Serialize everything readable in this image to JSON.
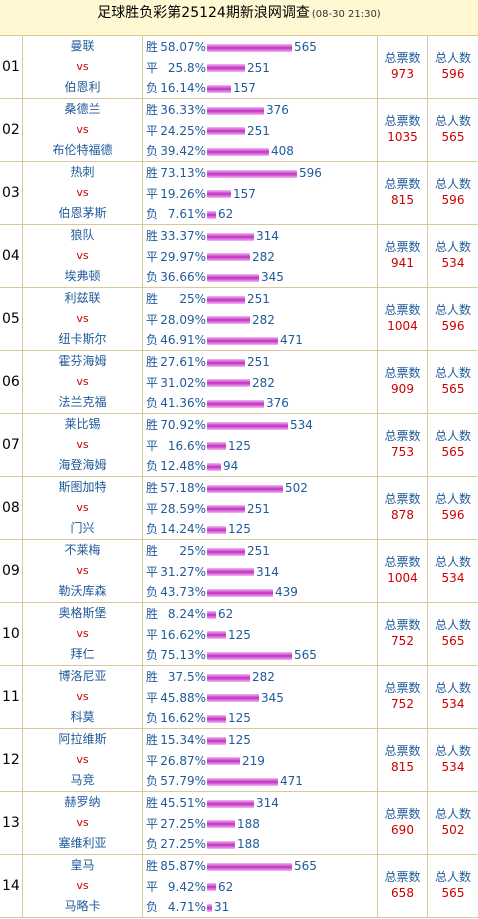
{
  "header": {
    "title": "足球胜负彩第25124期新浪网调查",
    "time": "(08-30 21:30)"
  },
  "labels": {
    "win": "胜",
    "draw": "平",
    "loss": "负",
    "vs": "vs",
    "total_votes": "总票数",
    "total_people": "总人数"
  },
  "scale_max": 596,
  "matches": [
    {
      "num": "01",
      "home": "曼联",
      "away": "伯恩利",
      "win": {
        "pct": "58.07%",
        "count": 565
      },
      "draw": {
        "pct": "25.8%",
        "count": 251
      },
      "loss": {
        "pct": "16.14%",
        "count": 157
      },
      "votes": "973",
      "people": "596"
    },
    {
      "num": "02",
      "home": "桑德兰",
      "away": "布伦特福德",
      "win": {
        "pct": "36.33%",
        "count": 376
      },
      "draw": {
        "pct": "24.25%",
        "count": 251
      },
      "loss": {
        "pct": "39.42%",
        "count": 408
      },
      "votes": "1035",
      "people": "565"
    },
    {
      "num": "03",
      "home": "热刺",
      "away": "伯恩茅斯",
      "win": {
        "pct": "73.13%",
        "count": 596
      },
      "draw": {
        "pct": "19.26%",
        "count": 157
      },
      "loss": {
        "pct": "7.61%",
        "count": 62
      },
      "votes": "815",
      "people": "596"
    },
    {
      "num": "04",
      "home": "狼队",
      "away": "埃弗顿",
      "win": {
        "pct": "33.37%",
        "count": 314
      },
      "draw": {
        "pct": "29.97%",
        "count": 282
      },
      "loss": {
        "pct": "36.66%",
        "count": 345
      },
      "votes": "941",
      "people": "534"
    },
    {
      "num": "05",
      "home": "利兹联",
      "away": "纽卡斯尔",
      "win": {
        "pct": "25%",
        "count": 251
      },
      "draw": {
        "pct": "28.09%",
        "count": 282
      },
      "loss": {
        "pct": "46.91%",
        "count": 471
      },
      "votes": "1004",
      "people": "596"
    },
    {
      "num": "06",
      "home": "霍芬海姆",
      "away": "法兰克福",
      "win": {
        "pct": "27.61%",
        "count": 251
      },
      "draw": {
        "pct": "31.02%",
        "count": 282
      },
      "loss": {
        "pct": "41.36%",
        "count": 376
      },
      "votes": "909",
      "people": "565"
    },
    {
      "num": "07",
      "home": "莱比锡",
      "away": "海登海姆",
      "win": {
        "pct": "70.92%",
        "count": 534
      },
      "draw": {
        "pct": "16.6%",
        "count": 125
      },
      "loss": {
        "pct": "12.48%",
        "count": 94
      },
      "votes": "753",
      "people": "565"
    },
    {
      "num": "08",
      "home": "斯图加特",
      "away": "门兴",
      "win": {
        "pct": "57.18%",
        "count": 502
      },
      "draw": {
        "pct": "28.59%",
        "count": 251
      },
      "loss": {
        "pct": "14.24%",
        "count": 125
      },
      "votes": "878",
      "people": "596"
    },
    {
      "num": "09",
      "home": "不莱梅",
      "away": "勒沃库森",
      "win": {
        "pct": "25%",
        "count": 251
      },
      "draw": {
        "pct": "31.27%",
        "count": 314
      },
      "loss": {
        "pct": "43.73%",
        "count": 439
      },
      "votes": "1004",
      "people": "534"
    },
    {
      "num": "10",
      "home": "奥格斯堡",
      "away": "拜仁",
      "win": {
        "pct": "8.24%",
        "count": 62
      },
      "draw": {
        "pct": "16.62%",
        "count": 125
      },
      "loss": {
        "pct": "75.13%",
        "count": 565
      },
      "votes": "752",
      "people": "565"
    },
    {
      "num": "11",
      "home": "博洛尼亚",
      "away": "科莫",
      "win": {
        "pct": "37.5%",
        "count": 282
      },
      "draw": {
        "pct": "45.88%",
        "count": 345
      },
      "loss": {
        "pct": "16.62%",
        "count": 125
      },
      "votes": "752",
      "people": "534"
    },
    {
      "num": "12",
      "home": "阿拉维斯",
      "away": "马竞",
      "win": {
        "pct": "15.34%",
        "count": 125
      },
      "draw": {
        "pct": "26.87%",
        "count": 219
      },
      "loss": {
        "pct": "57.79%",
        "count": 471
      },
      "votes": "815",
      "people": "534"
    },
    {
      "num": "13",
      "home": "赫罗纳",
      "away": "塞维利亚",
      "win": {
        "pct": "45.51%",
        "count": 314
      },
      "draw": {
        "pct": "27.25%",
        "count": 188
      },
      "loss": {
        "pct": "27.25%",
        "count": 188
      },
      "votes": "690",
      "people": "502"
    },
    {
      "num": "14",
      "home": "皇马",
      "away": "马略卡",
      "win": {
        "pct": "85.87%",
        "count": 565
      },
      "draw": {
        "pct": "9.42%",
        "count": 62
      },
      "loss": {
        "pct": "4.71%",
        "count": 31
      },
      "votes": "658",
      "people": "565"
    }
  ]
}
